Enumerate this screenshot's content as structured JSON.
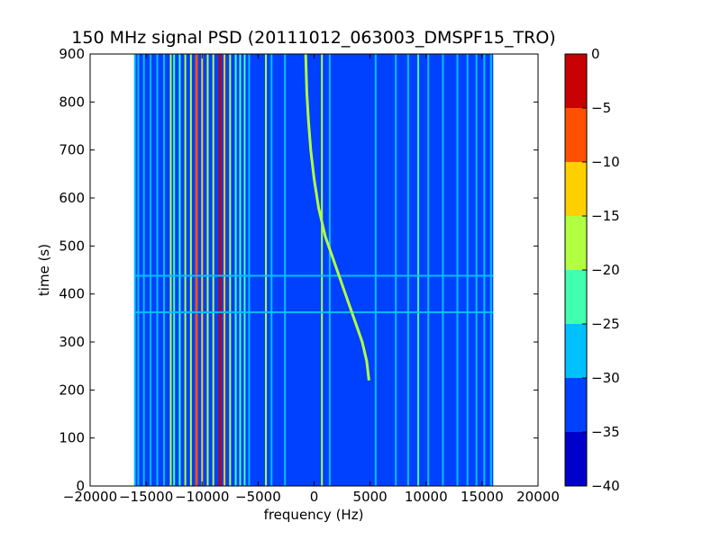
{
  "chart_data": {
    "type": "heatmap",
    "title": "150 MHz signal PSD (20111012_063003_DMSPF15_TRO)",
    "xlabel": "frequency (Hz)",
    "ylabel": "time (s)",
    "xlim": [
      -20000,
      20000
    ],
    "ylim": [
      0,
      900
    ],
    "xticks": [
      -20000,
      -15000,
      -10000,
      -5000,
      0,
      5000,
      10000,
      15000,
      20000
    ],
    "yticks": [
      0,
      100,
      200,
      300,
      400,
      500,
      600,
      700,
      800,
      900
    ],
    "data_extent_x": [
      -16000,
      16000
    ],
    "data_extent_y": [
      0,
      900
    ],
    "background_level_dB": -33,
    "colorbar": {
      "levels": [
        -40,
        -35,
        -30,
        -25,
        -20,
        -15,
        -10,
        -5,
        0
      ],
      "tick_labels": [
        "0",
        "−5",
        "−10",
        "−15",
        "−20",
        "−25",
        "−30",
        "−35",
        "−40"
      ],
      "colors": [
        "#0000cd",
        "#0040ff",
        "#00c0ff",
        "#40ffb0",
        "#b0ff40",
        "#ffd000",
        "#ff5000",
        "#c80000"
      ]
    },
    "vertical_lines": [
      {
        "freq": -16000,
        "level": -27
      },
      {
        "freq": -15700,
        "level": -28
      },
      {
        "freq": -15200,
        "level": -28
      },
      {
        "freq": -14600,
        "level": -29
      },
      {
        "freq": -14000,
        "level": -29
      },
      {
        "freq": -13400,
        "level": -28
      },
      {
        "freq": -12800,
        "level": -17
      },
      {
        "freq": -12500,
        "level": -22
      },
      {
        "freq": -12000,
        "level": -24
      },
      {
        "freq": -11500,
        "level": -18
      },
      {
        "freq": -11000,
        "level": -20
      },
      {
        "freq": -10500,
        "level": -8
      },
      {
        "freq": -10000,
        "level": -15
      },
      {
        "freq": -9500,
        "level": -18
      },
      {
        "freq": -9000,
        "level": -19
      },
      {
        "freq": -8400,
        "level": -3
      },
      {
        "freq": -8000,
        "level": -14
      },
      {
        "freq": -7500,
        "level": -20
      },
      {
        "freq": -7000,
        "level": -21
      },
      {
        "freq": -6600,
        "level": -23
      },
      {
        "freq": -6200,
        "level": -25
      },
      {
        "freq": -5800,
        "level": -28
      },
      {
        "freq": -4300,
        "level": -17
      },
      {
        "freq": -3800,
        "level": -29
      },
      {
        "freq": -2600,
        "level": -29
      },
      {
        "freq": 700,
        "level": -18
      },
      {
        "freq": 1400,
        "level": -29
      },
      {
        "freq": 5500,
        "level": -29
      },
      {
        "freq": 7300,
        "level": -28
      },
      {
        "freq": 8400,
        "level": -29
      },
      {
        "freq": 9300,
        "level": -24
      },
      {
        "freq": 10200,
        "level": -27
      },
      {
        "freq": 11500,
        "level": -28
      },
      {
        "freq": 12800,
        "level": -27
      },
      {
        "freq": 13700,
        "level": -28
      },
      {
        "freq": 14500,
        "level": -28
      },
      {
        "freq": 15200,
        "level": -28
      },
      {
        "freq": 15800,
        "level": -28
      }
    ],
    "horizontal_lines": [
      {
        "time": 362,
        "level": -27
      },
      {
        "time": 438,
        "level": -27
      }
    ],
    "doppler_trace": {
      "level": -18,
      "points": [
        [
          4900,
          220
        ],
        [
          4700,
          260
        ],
        [
          4300,
          300
        ],
        [
          3700,
          340
        ],
        [
          3100,
          380
        ],
        [
          2500,
          420
        ],
        [
          1900,
          460
        ],
        [
          1300,
          500
        ],
        [
          1000,
          520
        ],
        [
          400,
          580
        ],
        [
          0,
          640
        ],
        [
          -300,
          700
        ],
        [
          -500,
          760
        ],
        [
          -650,
          820
        ],
        [
          -750,
          900
        ]
      ]
    }
  }
}
